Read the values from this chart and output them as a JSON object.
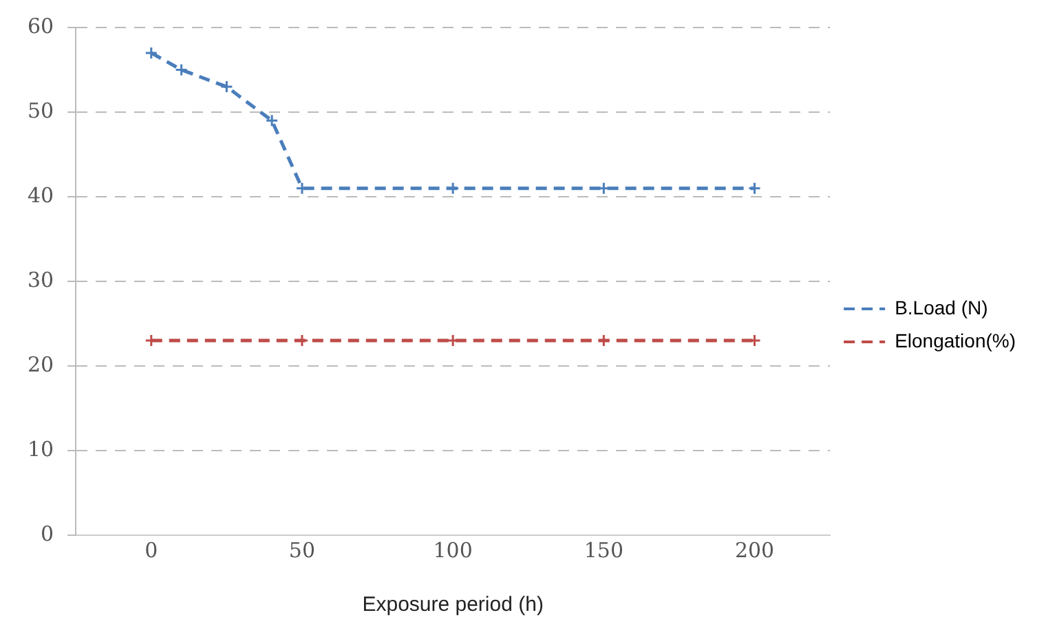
{
  "chart_data": {
    "type": "line",
    "xlabel": "Exposure period (h)",
    "xlim": [
      -25,
      225
    ],
    "xticks": [
      0,
      50,
      100,
      150,
      200
    ],
    "ylim": [
      0,
      60
    ],
    "yticks": [
      0,
      10,
      20,
      30,
      40,
      50,
      60
    ],
    "series": [
      {
        "name": "B.Load (N)",
        "color": "#4a7ebb",
        "x": [
          0,
          10,
          25,
          40,
          50,
          100,
          150,
          200
        ],
        "values": [
          57,
          55,
          53,
          49,
          41,
          41,
          41,
          41
        ]
      },
      {
        "name": "Elongation(%)",
        "color": "#be4b48",
        "x": [
          0,
          50,
          100,
          150,
          200
        ],
        "values": [
          23,
          23,
          23,
          23,
          23
        ]
      }
    ],
    "grid": "y",
    "legend": "right",
    "line_style": "dashed",
    "marker": "cross"
  }
}
